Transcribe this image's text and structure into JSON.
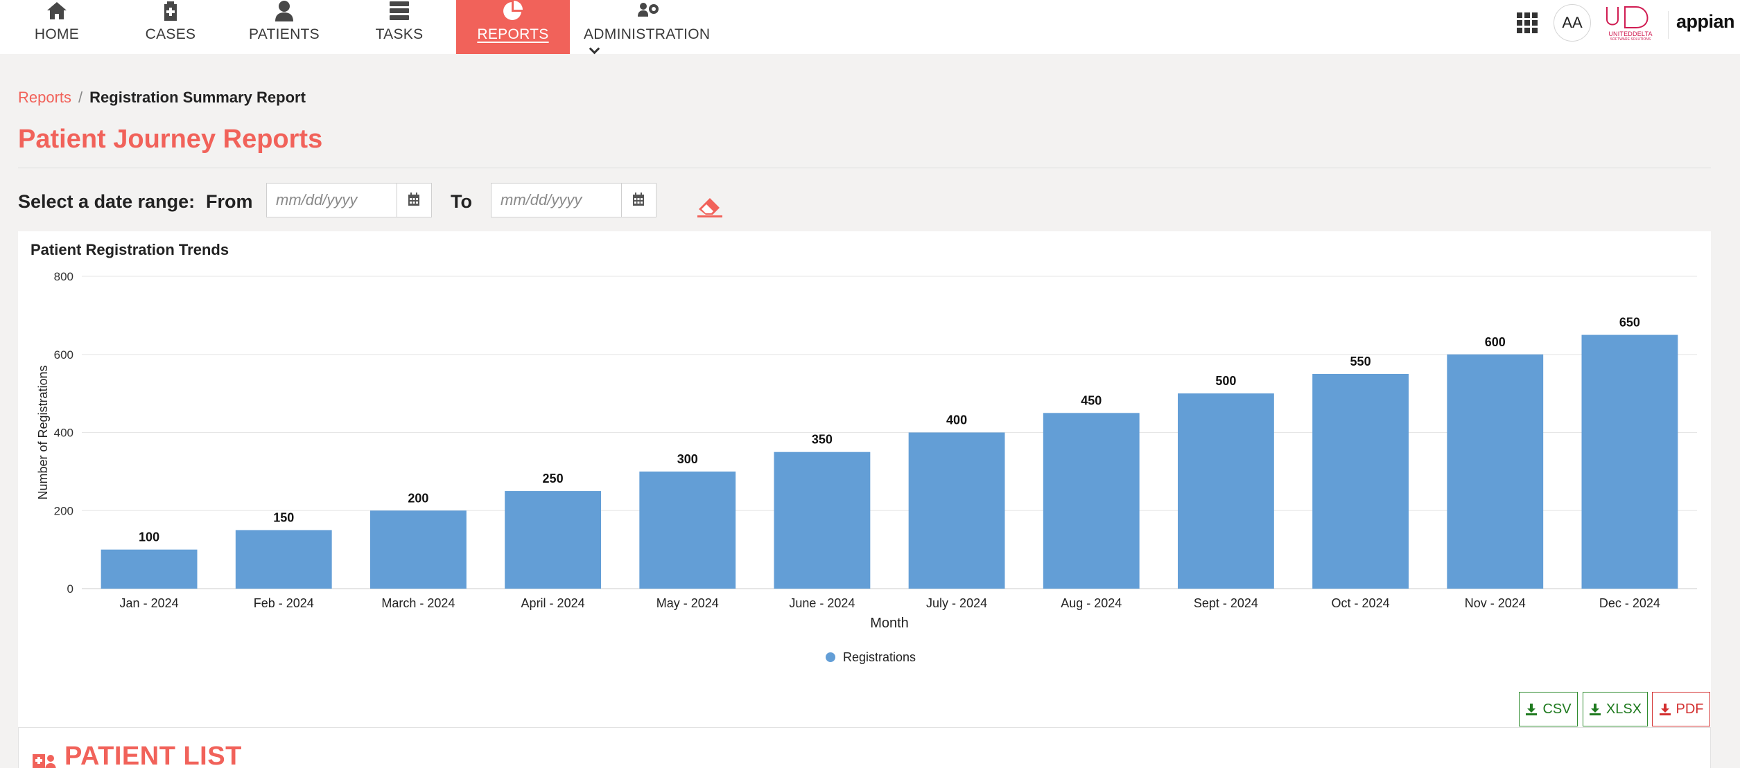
{
  "nav": {
    "tabs": [
      {
        "label": "HOME",
        "icon": "home-icon"
      },
      {
        "label": "CASES",
        "icon": "medical-clipboard-icon"
      },
      {
        "label": "PATIENTS",
        "icon": "user-icon"
      },
      {
        "label": "TASKS",
        "icon": "tasks-icon"
      },
      {
        "label": "REPORTS",
        "icon": "pie-chart-icon",
        "active": true
      },
      {
        "label": "ADMINISTRATION",
        "icon": "users-cog-icon",
        "dropdown": true
      }
    ],
    "avatar_initials": "AA",
    "brand_caption": "UNITEDDELTA",
    "brand_subcaption": "SOFTWARE SOLUTIONS",
    "platform_logo_text": "appian"
  },
  "breadcrumb": {
    "parent": "Reports",
    "separator": "/",
    "current": "Registration Summary Report"
  },
  "page_title": "Patient Journey Reports",
  "date_range": {
    "label": "Select a date range:",
    "from_label": "From",
    "to_label": "To",
    "from_placeholder": "mm/dd/yyyy",
    "to_placeholder": "mm/dd/yyyy"
  },
  "chart_data": {
    "type": "bar",
    "title": "Patient Registration Trends",
    "xlabel": "Month",
    "ylabel": "Number of Registrations",
    "ylim": [
      0,
      800
    ],
    "yticks": [
      0,
      200,
      400,
      600,
      800
    ],
    "grid": true,
    "legend_position": "bottom-center",
    "categories": [
      "Jan - 2024",
      "Feb - 2024",
      "March - 2024",
      "April - 2024",
      "May - 2024",
      "June - 2024",
      "July - 2024",
      "Aug - 2024",
      "Sept - 2024",
      "Oct - 2024",
      "Nov - 2024",
      "Dec - 2024"
    ],
    "series": [
      {
        "name": "Registrations",
        "color": "#639ed6",
        "values": [
          100,
          150,
          200,
          250,
          300,
          350,
          400,
          450,
          500,
          550,
          600,
          650
        ]
      }
    ]
  },
  "export": {
    "csv_label": "CSV",
    "xlsx_label": "XLSX",
    "pdf_label": "PDF"
  },
  "patient_list": {
    "title": "PATIENT LIST"
  },
  "colors": {
    "accent": "#f1625a",
    "bar": "#639ed6",
    "export_green": "#1f7a1f",
    "export_red": "#d32f2f"
  }
}
